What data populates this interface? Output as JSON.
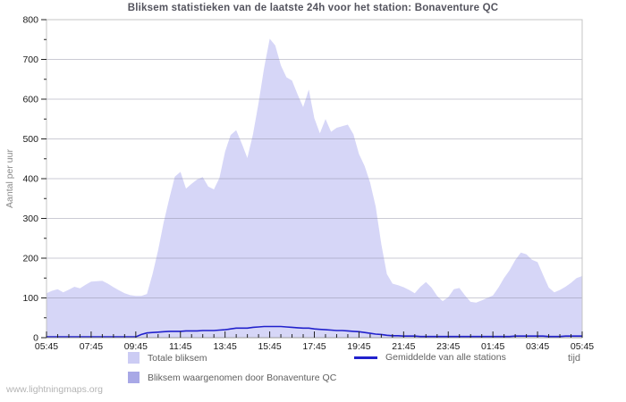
{
  "title": "Bliksem statistieken van de laatste 24h voor het station: Bonaventure QC",
  "watermark": "www.lightningmaps.org",
  "axes": {
    "y_label": "Aantal per uur",
    "x_label": "tijd"
  },
  "legend": {
    "total": "Totale bliksem",
    "station": "Bliksem waargenomen door Bonaventure QC",
    "average": "Gemiddelde van alle stations"
  },
  "colors": {
    "total_fill": "#d6d6f7",
    "total_swatch": "#ccccf4",
    "station_fill": "#a9a9e2",
    "station_swatch": "#a8a8e6",
    "average_line": "#2121cc",
    "grid": "#cccccc",
    "border": "#c4c4c4",
    "axis_bottom": "#999999",
    "tick": "#222222",
    "tick_label": "#1a1a1a",
    "title_text": "#54545e",
    "y_title_text": "#8a8a8a"
  },
  "chart_data": {
    "type": "area",
    "title": "Bliksem statistieken van de laatste 24h voor het station: Bonaventure QC",
    "xlabel": "tijd",
    "ylabel": "Aantal per uur",
    "ylim": [
      0,
      800
    ],
    "grid": "horizontal",
    "legend_position": "bottom",
    "x_minutes_step": 15,
    "x_start": "05:45",
    "x_tick_labels": [
      "05:45",
      "07:45",
      "09:45",
      "11:45",
      "13:45",
      "15:45",
      "17:45",
      "19:45",
      "21:45",
      "23:45",
      "01:45",
      "03:45",
      "05:45"
    ],
    "y_ticks": [
      0,
      100,
      200,
      300,
      400,
      500,
      600,
      700,
      800
    ],
    "series": [
      {
        "name": "Totale bliksem",
        "type": "area",
        "values": [
          112,
          118,
          122,
          114,
          121,
          128,
          124,
          133,
          141,
          142,
          143,
          136,
          127,
          119,
          112,
          107,
          105,
          105,
          110,
          160,
          220,
          290,
          350,
          405,
          417,
          375,
          387,
          398,
          404,
          380,
          373,
          402,
          468,
          510,
          522,
          488,
          452,
          512,
          590,
          678,
          752,
          735,
          685,
          655,
          647,
          612,
          580,
          624,
          552,
          514,
          550,
          518,
          528,
          532,
          536,
          512,
          462,
          432,
          390,
          330,
          235,
          160,
          136,
          132,
          127,
          120,
          112,
          128,
          140,
          126,
          105,
          92,
          102,
          122,
          125,
          106,
          90,
          88,
          94,
          100,
          106,
          126,
          150,
          170,
          195,
          214,
          210,
          196,
          190,
          158,
          126,
          114,
          120,
          128,
          138,
          150,
          155
        ]
      },
      {
        "name": "Bliksem waargenomen door Bonaventure QC",
        "type": "area",
        "values": [
          0,
          0,
          0,
          0,
          0,
          0,
          0,
          0,
          0,
          0,
          0,
          0,
          0,
          0,
          0,
          0,
          0,
          0,
          0,
          0,
          0,
          0,
          0,
          0,
          0,
          0,
          0,
          0,
          0,
          0,
          0,
          0,
          0,
          0,
          0,
          0,
          0,
          0,
          0,
          0,
          0,
          0,
          0,
          0,
          0,
          0,
          0,
          0,
          0,
          0,
          0,
          0,
          0,
          0,
          0,
          0,
          0,
          0,
          0,
          0,
          0,
          0,
          0,
          0,
          0,
          0,
          0,
          0,
          0,
          0,
          0,
          0,
          0,
          0,
          0,
          0,
          0,
          0,
          0,
          0,
          0,
          0,
          0,
          0,
          0,
          0,
          0,
          0,
          0,
          0,
          0,
          0,
          0,
          0,
          0,
          0,
          0
        ]
      },
      {
        "name": "Gemiddelde van alle stations",
        "type": "line",
        "values": [
          2,
          2,
          2,
          2,
          2,
          2,
          2,
          2,
          2,
          2,
          2,
          2,
          2,
          2,
          2,
          2,
          2,
          8,
          12,
          13,
          14,
          15,
          16,
          16,
          16,
          17,
          17,
          17,
          18,
          18,
          18,
          19,
          20,
          22,
          24,
          24,
          24,
          26,
          27,
          28,
          28,
          28,
          28,
          27,
          26,
          25,
          24,
          24,
          22,
          21,
          20,
          19,
          18,
          18,
          17,
          16,
          15,
          13,
          11,
          9,
          8,
          6,
          5,
          5,
          4,
          4,
          4,
          3,
          3,
          3,
          3,
          3,
          3,
          3,
          3,
          3,
          3,
          3,
          3,
          3,
          3,
          3,
          3,
          3,
          4,
          4,
          4,
          4,
          4,
          4,
          3,
          3,
          3,
          4,
          4,
          4,
          4
        ]
      }
    ]
  }
}
